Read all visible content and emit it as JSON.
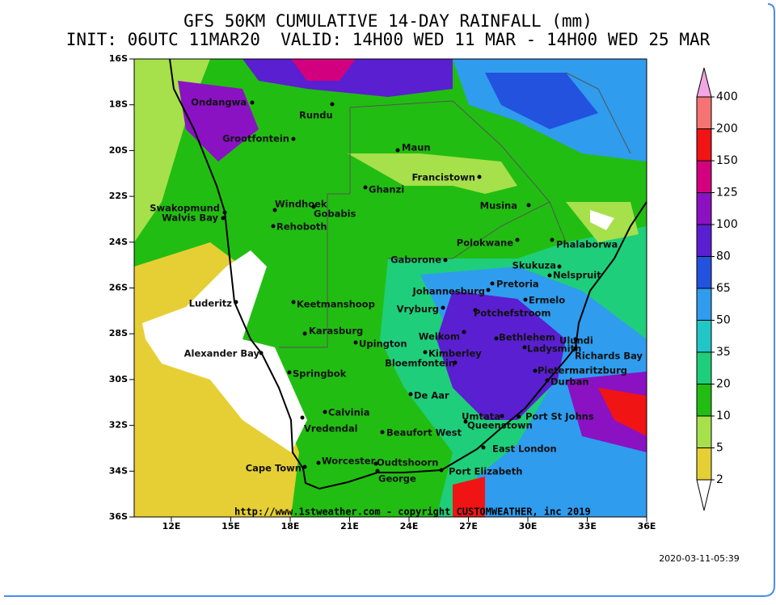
{
  "header": {
    "title": "GFS 50KM CUMULATIVE 14-DAY RAINFALL (mm)",
    "subtitle": "INIT: 06UTC 11MAR20  VALID: 14H00 WED 11 MAR - 14H00 WED 25 MAR"
  },
  "map": {
    "lat_labels": [
      "16S",
      "18S",
      "20S",
      "22S",
      "24S",
      "26S",
      "28S",
      "30S",
      "32S",
      "34S",
      "36S"
    ],
    "lon_labels": [
      "12E",
      "15E",
      "18E",
      "21E",
      "24E",
      "27E",
      "30E",
      "33E",
      "36E"
    ],
    "places": [
      "Ondangwa",
      "Rundu",
      "Grootfontein",
      "Maun",
      "Francistown",
      "Ghanzi",
      "Windhoek",
      "Gobabis",
      "Swakopmund",
      "Walvis Bay",
      "Rehoboth",
      "Musina",
      "Polokwane",
      "Phalaborwa",
      "Gaborone",
      "Skukuza",
      "Nelspruit",
      "Pretoria",
      "Johannesburg",
      "Ermelo",
      "Luderitz",
      "Keetmanshoop",
      "Vryburg",
      "Potchefstroom",
      "Karasburg",
      "Welkom",
      "Bethlehem",
      "Ulundi",
      "Upington",
      "Ladysmith",
      "Richards Bay",
      "Alexander Bay",
      "Kimberley",
      "Bloemfontein",
      "Pietermaritzburg",
      "Durban",
      "Springbok",
      "De Aar",
      "Calvinia",
      "Vredendal",
      "Umtata",
      "Port St Johns",
      "Queenstown",
      "Beaufort West",
      "East London",
      "Worcester",
      "Oudtshoorn",
      "Cape Town",
      "Port Elizabeth",
      "George"
    ],
    "credit": "http://www.1stweather.com - copyright CUSTOMWEATHER, inc 2019"
  },
  "legend": {
    "levels": [
      2,
      5,
      10,
      20,
      35,
      50,
      65,
      80,
      100,
      125,
      150,
      200,
      400
    ],
    "colors": [
      "#ffffff",
      "#e6cf34",
      "#a6e04a",
      "#22bd12",
      "#1fce7a",
      "#22c6c6",
      "#2f9cee",
      "#2352df",
      "#5a1fd0",
      "#8a12c2",
      "#d2007f",
      "#f01414",
      "#f57373",
      "#f2a6e4"
    ]
  },
  "timestamp": "2020-03-11-05:39"
}
